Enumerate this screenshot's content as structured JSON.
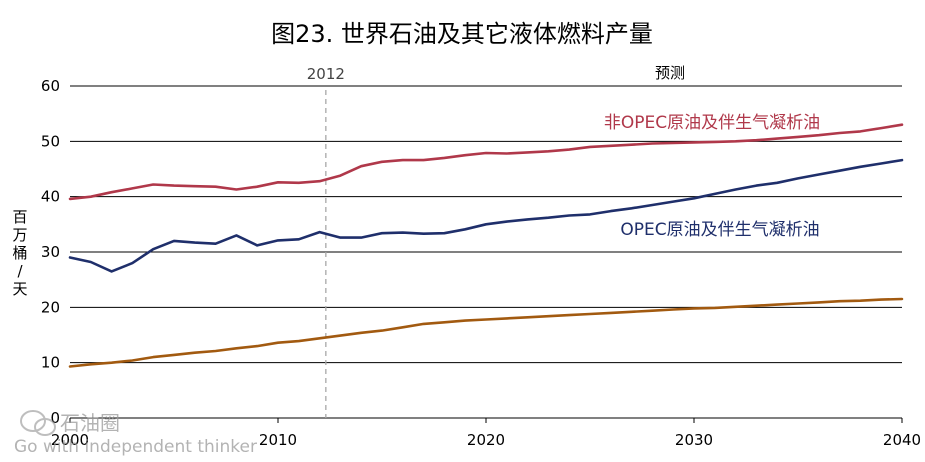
{
  "chart_data": {
    "type": "line",
    "title": "图23. 世界石油及其它液体燃料产量",
    "ylabel": "百万桶/天",
    "xlim": [
      2000,
      2040
    ],
    "ylim": [
      0,
      60
    ],
    "yticks": [
      0,
      10,
      20,
      30,
      40,
      50,
      60
    ],
    "xticks": [
      2000,
      2010,
      2020,
      2030,
      2040
    ],
    "grid": "horizontal",
    "marker_year": 2012,
    "marker_label": "2012",
    "forecast_label": "预测",
    "x": [
      2000,
      2001,
      2002,
      2003,
      2004,
      2005,
      2006,
      2007,
      2008,
      2009,
      2010,
      2011,
      2012,
      2013,
      2014,
      2015,
      2016,
      2017,
      2018,
      2019,
      2020,
      2021,
      2022,
      2023,
      2024,
      2025,
      2026,
      2027,
      2028,
      2029,
      2030,
      2031,
      2032,
      2033,
      2034,
      2035,
      2036,
      2037,
      2038,
      2039,
      2040
    ],
    "series": [
      {
        "name": "非OPEC原油及伴生气凝析油",
        "color": "#b0384a",
        "values": [
          39.6,
          40.0,
          40.8,
          41.5,
          42.2,
          42.0,
          41.9,
          41.8,
          41.3,
          41.8,
          42.6,
          42.5,
          42.8,
          43.8,
          45.5,
          46.3,
          46.6,
          46.6,
          47.0,
          47.5,
          47.9,
          47.8,
          48.0,
          48.2,
          48.5,
          49.0,
          49.2,
          49.4,
          49.6,
          49.7,
          49.8,
          49.9,
          50.0,
          50.2,
          50.5,
          50.8,
          51.1,
          51.5,
          51.8,
          52.4,
          53.0
        ]
      },
      {
        "name": "OPEC原油及伴生气凝析油",
        "color": "#1f2f6b",
        "values": [
          29.0,
          28.2,
          26.5,
          28.0,
          30.5,
          32.0,
          31.7,
          31.5,
          33.0,
          31.2,
          32.1,
          32.3,
          33.6,
          32.6,
          32.6,
          33.4,
          33.5,
          33.3,
          33.4,
          34.1,
          35.0,
          35.5,
          35.9,
          36.2,
          36.6,
          36.8,
          37.4,
          37.9,
          38.5,
          39.1,
          39.7,
          40.5,
          41.3,
          42.0,
          42.5,
          43.3,
          44.0,
          44.7,
          45.4,
          46.0,
          46.6
        ]
      },
      {
        "name": "",
        "color": "#a25a10",
        "values": [
          9.3,
          9.7,
          10.0,
          10.4,
          11.0,
          11.4,
          11.8,
          12.1,
          12.6,
          13.0,
          13.6,
          13.9,
          14.4,
          14.9,
          15.4,
          15.8,
          16.4,
          17.0,
          17.3,
          17.6,
          17.8,
          18.0,
          18.2,
          18.4,
          18.6,
          18.8,
          19.0,
          19.2,
          19.4,
          19.6,
          19.8,
          19.9,
          20.1,
          20.3,
          20.5,
          20.7,
          20.9,
          21.1,
          21.2,
          21.4,
          21.5
        ]
      }
    ]
  },
  "watermark": {
    "name": "石油圈",
    "tagline": "Go with independent thinker"
  }
}
